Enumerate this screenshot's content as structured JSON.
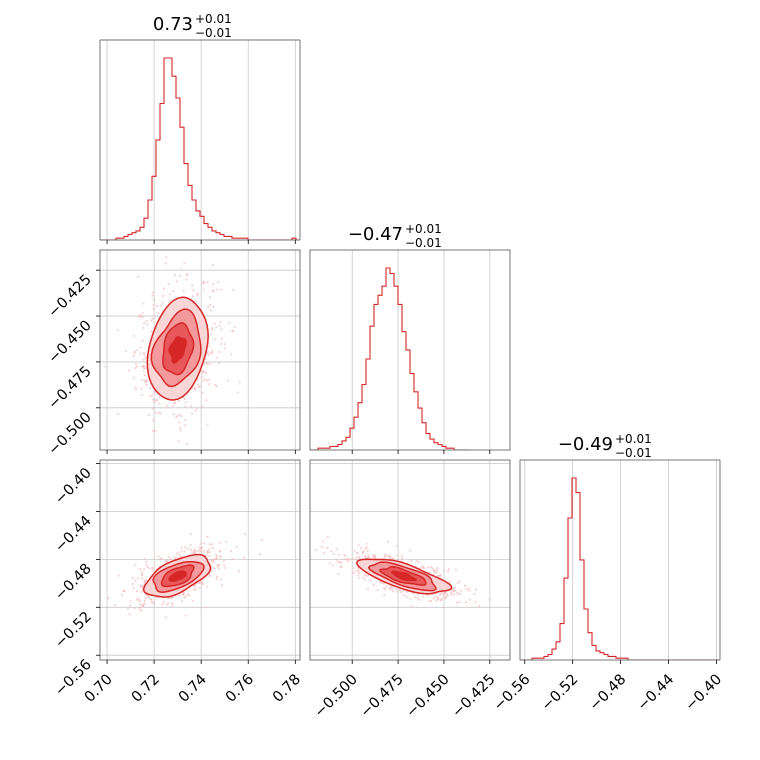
{
  "chart_data": {
    "type": "corner",
    "color": "#d62728",
    "fill_colors": [
      "#fbd6d6",
      "#f49a9c",
      "#e8585b",
      "#d62728"
    ],
    "point_color": "#f4b8b9",
    "grid": true,
    "titles": [
      {
        "value": "0.73",
        "plus": "+0.01",
        "minus": "−0.01"
      },
      {
        "value": "−0.47",
        "plus": "+0.01",
        "minus": "−0.01"
      },
      {
        "value": "−0.49",
        "plus": "+0.01",
        "minus": "−0.01"
      }
    ],
    "params": [
      {
        "range": [
          0.697,
          0.782
        ],
        "ticks": [
          0.7,
          0.72,
          0.74,
          0.76,
          0.78
        ],
        "tick_labels": [
          "0.70",
          "0.72",
          "0.74",
          "0.76",
          "0.78"
        ]
      },
      {
        "range": [
          -0.523,
          -0.414
        ],
        "ticks": [
          -0.5,
          -0.475,
          -0.45,
          -0.425
        ],
        "tick_labels": [
          "−0.500",
          "−0.475",
          "−0.450",
          "−0.425"
        ]
      },
      {
        "range": [
          -0.564,
          -0.397
        ],
        "ticks": [
          -0.56,
          -0.52,
          -0.48,
          -0.44,
          -0.4
        ],
        "tick_labels": [
          "−0.56",
          "−0.52",
          "−0.48",
          "−0.44",
          "−0.40"
        ]
      }
    ],
    "histograms": [
      {
        "param": 0,
        "bin_start": 0.697,
        "bin_width": 0.0017,
        "counts": [
          0,
          0,
          0,
          0,
          1,
          1,
          2,
          3,
          4,
          5,
          7,
          12,
          22,
          35,
          55,
          75,
          100,
          100,
          90,
          78,
          62,
          42,
          30,
          22,
          16,
          13,
          9,
          7,
          5,
          4,
          3,
          2,
          2,
          1,
          1,
          1,
          1,
          0,
          0,
          0,
          0,
          0,
          0,
          0,
          0,
          0,
          0,
          0,
          1,
          0
        ]
      },
      {
        "param": 1,
        "bin_start": -0.523,
        "bin_width": 0.00218,
        "counts": [
          0,
          0,
          1,
          1,
          1,
          2,
          2,
          3,
          5,
          7,
          12,
          18,
          26,
          36,
          50,
          68,
          80,
          85,
          90,
          100,
          97,
          90,
          80,
          65,
          55,
          42,
          32,
          23,
          15,
          9,
          6,
          4,
          3,
          2,
          1,
          1,
          0,
          0,
          0,
          0
        ]
      },
      {
        "param": 2,
        "bin_start": -0.564,
        "bin_width": 0.00334,
        "counts": [
          0,
          0,
          0,
          1,
          1,
          1,
          2,
          3,
          6,
          10,
          20,
          45,
          78,
          100,
          92,
          55,
          28,
          15,
          8,
          5,
          4,
          3,
          2,
          2,
          1,
          1,
          1,
          0,
          0,
          0,
          0,
          0,
          0,
          0,
          0,
          0,
          0,
          0,
          0,
          0,
          0,
          0,
          0,
          0,
          0,
          0,
          0,
          0,
          0,
          0
        ]
      }
    ],
    "pairs": [
      {
        "x_param": 0,
        "y_param": 1,
        "center": [
          0.73,
          -0.468
        ],
        "sigma": [
          0.0065,
          0.0135
        ],
        "rho": 0.25,
        "levels": [
          0.5,
          1.0,
          1.5,
          2.0
        ]
      },
      {
        "x_param": 0,
        "y_param": 2,
        "center": [
          0.73,
          -0.494
        ],
        "sigma": [
          0.007,
          0.0085
        ],
        "rho": 0.55,
        "levels": [
          0.5,
          1.0,
          1.5,
          2.0
        ]
      },
      {
        "x_param": 1,
        "y_param": 2,
        "center": [
          -0.472,
          -0.494
        ],
        "sigma": [
          0.012,
          0.0075
        ],
        "rho": -0.7,
        "levels": [
          0.5,
          1.0,
          1.5,
          2.0
        ]
      }
    ]
  }
}
